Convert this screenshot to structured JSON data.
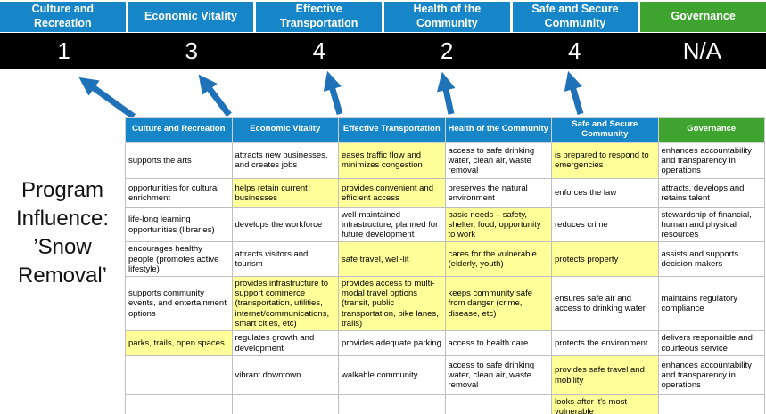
{
  "title": {
    "text": "Program Influence: ’Snow Removal’"
  },
  "banner": {
    "columns": [
      {
        "label": "Culture and Recreation",
        "score": "1"
      },
      {
        "label": "Economic Vitality",
        "score": "3"
      },
      {
        "label": "Effective Transportation",
        "score": "4"
      },
      {
        "label": "Health of the Community",
        "score": "2"
      },
      {
        "label": "Safe and Secure Community",
        "score": "4"
      },
      {
        "label": "Governance",
        "score": "N/A"
      }
    ]
  },
  "matrix": {
    "headers": [
      "Culture and Recreation",
      "Economic Vitality",
      "Effective Transportation",
      "Health of the Community",
      "Safe and Secure Community",
      "Governance"
    ],
    "rows": [
      [
        {
          "text": "supports the arts",
          "hl": false
        },
        {
          "text": "attracts new businesses, and creates jobs",
          "hl": false
        },
        {
          "text": "eases traffic flow and minimizes congestion",
          "hl": true
        },
        {
          "text": "access to safe drinking water, clean air, waste removal",
          "hl": false
        },
        {
          "text": "is prepared to respond to emergencies",
          "hl": true
        },
        {
          "text": "enhances accountability and transparency in operations",
          "hl": false
        }
      ],
      [
        {
          "text": "opportunities for cultural enrichment",
          "hl": false
        },
        {
          "text": "helps retain current businesses",
          "hl": true
        },
        {
          "text": "provides convenient and efficient access",
          "hl": true
        },
        {
          "text": "preserves the natural environment",
          "hl": false
        },
        {
          "text": "enforces the law",
          "hl": false
        },
        {
          "text": "attracts, develops and retains talent",
          "hl": false
        }
      ],
      [
        {
          "text": "life-long learning opportunities (libraries)",
          "hl": false
        },
        {
          "text": "develops the workforce",
          "hl": false
        },
        {
          "text": "well-maintained infrastructure, planned for future development",
          "hl": false
        },
        {
          "text": "basic needs – safety, shelter, food, opportunity to work",
          "hl": true
        },
        {
          "text": "reduces crime",
          "hl": false
        },
        {
          "text": "stewardship of financial, human and physical resources",
          "hl": false
        }
      ],
      [
        {
          "text": "encourages healthy people (promotes active lifestyle)",
          "hl": false
        },
        {
          "text": "attracts visitors and tourism",
          "hl": false
        },
        {
          "text": "safe travel, well-lit",
          "hl": true
        },
        {
          "text": "cares for the vulnerable (elderly, youth)",
          "hl": true
        },
        {
          "text": "protects property",
          "hl": true
        },
        {
          "text": "assists and supports decision makers",
          "hl": false
        }
      ],
      [
        {
          "text": "supports community events, and entertainment options",
          "hl": false
        },
        {
          "text": "provides infrastructure to support commerce (transportation, utilities, internet/communications, smart cities, etc)",
          "hl": true
        },
        {
          "text": "provides access to multi-modal travel options (transit, public transportation, bike lanes, trails)",
          "hl": true
        },
        {
          "text": "keeps community safe from danger (crime, disease, etc)",
          "hl": true
        },
        {
          "text": "ensures safe air and access to drinking water",
          "hl": false
        },
        {
          "text": "maintains regulatory compliance",
          "hl": false
        }
      ],
      [
        {
          "text": "parks, trails, open spaces",
          "hl": true
        },
        {
          "text": "regulates growth and development",
          "hl": false
        },
        {
          "text": "provides adequate parking",
          "hl": false
        },
        {
          "text": "access to health care",
          "hl": false
        },
        {
          "text": "protects the environment",
          "hl": false
        },
        {
          "text": "delivers responsible and courteous service",
          "hl": false
        }
      ],
      [
        {
          "text": "",
          "hl": false
        },
        {
          "text": "vibrant downtown",
          "hl": false
        },
        {
          "text": "walkable community",
          "hl": false
        },
        {
          "text": "access to safe drinking water, clean air, waste removal",
          "hl": false
        },
        {
          "text": "provides safe travel and mobility",
          "hl": true
        },
        {
          "text": "enhances accountability and transparency in operations",
          "hl": false
        }
      ],
      [
        {
          "text": "",
          "hl": false
        },
        {
          "text": "",
          "hl": false
        },
        {
          "text": "",
          "hl": false
        },
        {
          "text": "",
          "hl": false
        },
        {
          "text": "looks after it's most vulnerable",
          "hl": true
        },
        {
          "text": "",
          "hl": false
        }
      ]
    ]
  },
  "colors": {
    "header_blue": "#1786C8",
    "header_green": "#3EA32F",
    "score_band_bg": "#000000",
    "score_text": "#FFFFFF",
    "highlight_yellow": "#FFFF99",
    "arrow_blue": "#1F72B8"
  }
}
